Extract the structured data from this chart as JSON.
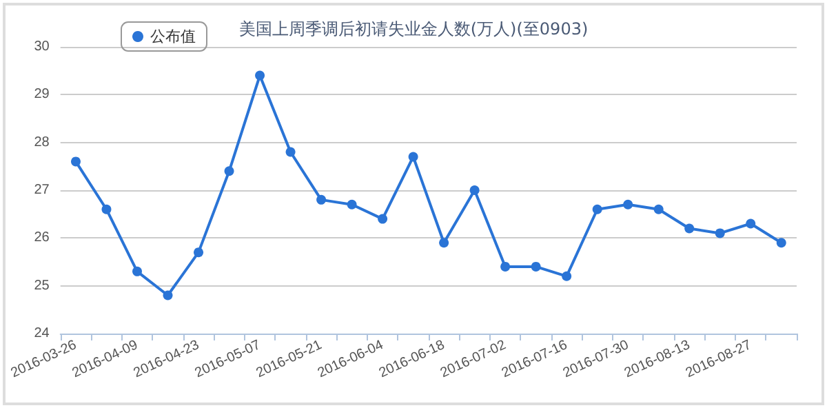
{
  "chart_data": {
    "type": "line",
    "title": "美国上周季调后初请失业金人数(万人)(至0903)",
    "categories": [
      "2016-03-26",
      null,
      "2016-04-09",
      null,
      "2016-04-23",
      null,
      "2016-05-07",
      null,
      "2016-05-21",
      null,
      "2016-06-04",
      null,
      "2016-06-18",
      null,
      "2016-07-02",
      null,
      "2016-07-16",
      null,
      "2016-07-30",
      null,
      "2016-08-13",
      null,
      "2016-08-27",
      null
    ],
    "series": [
      {
        "name": "公布值",
        "color": "#2a74d6",
        "values": [
          27.6,
          26.6,
          25.3,
          24.8,
          25.7,
          27.4,
          29.4,
          27.8,
          26.8,
          26.7,
          26.4,
          27.7,
          25.9,
          27.0,
          25.4,
          25.4,
          25.2,
          26.6,
          26.7,
          26.6,
          26.2,
          26.1,
          26.3,
          25.9
        ]
      }
    ],
    "ylim": [
      24,
      30
    ],
    "yticks": [
      24,
      25,
      26,
      27,
      28,
      29,
      30
    ],
    "grid": "y",
    "legend": "top left",
    "marker": "circle",
    "line_style": "solid"
  }
}
